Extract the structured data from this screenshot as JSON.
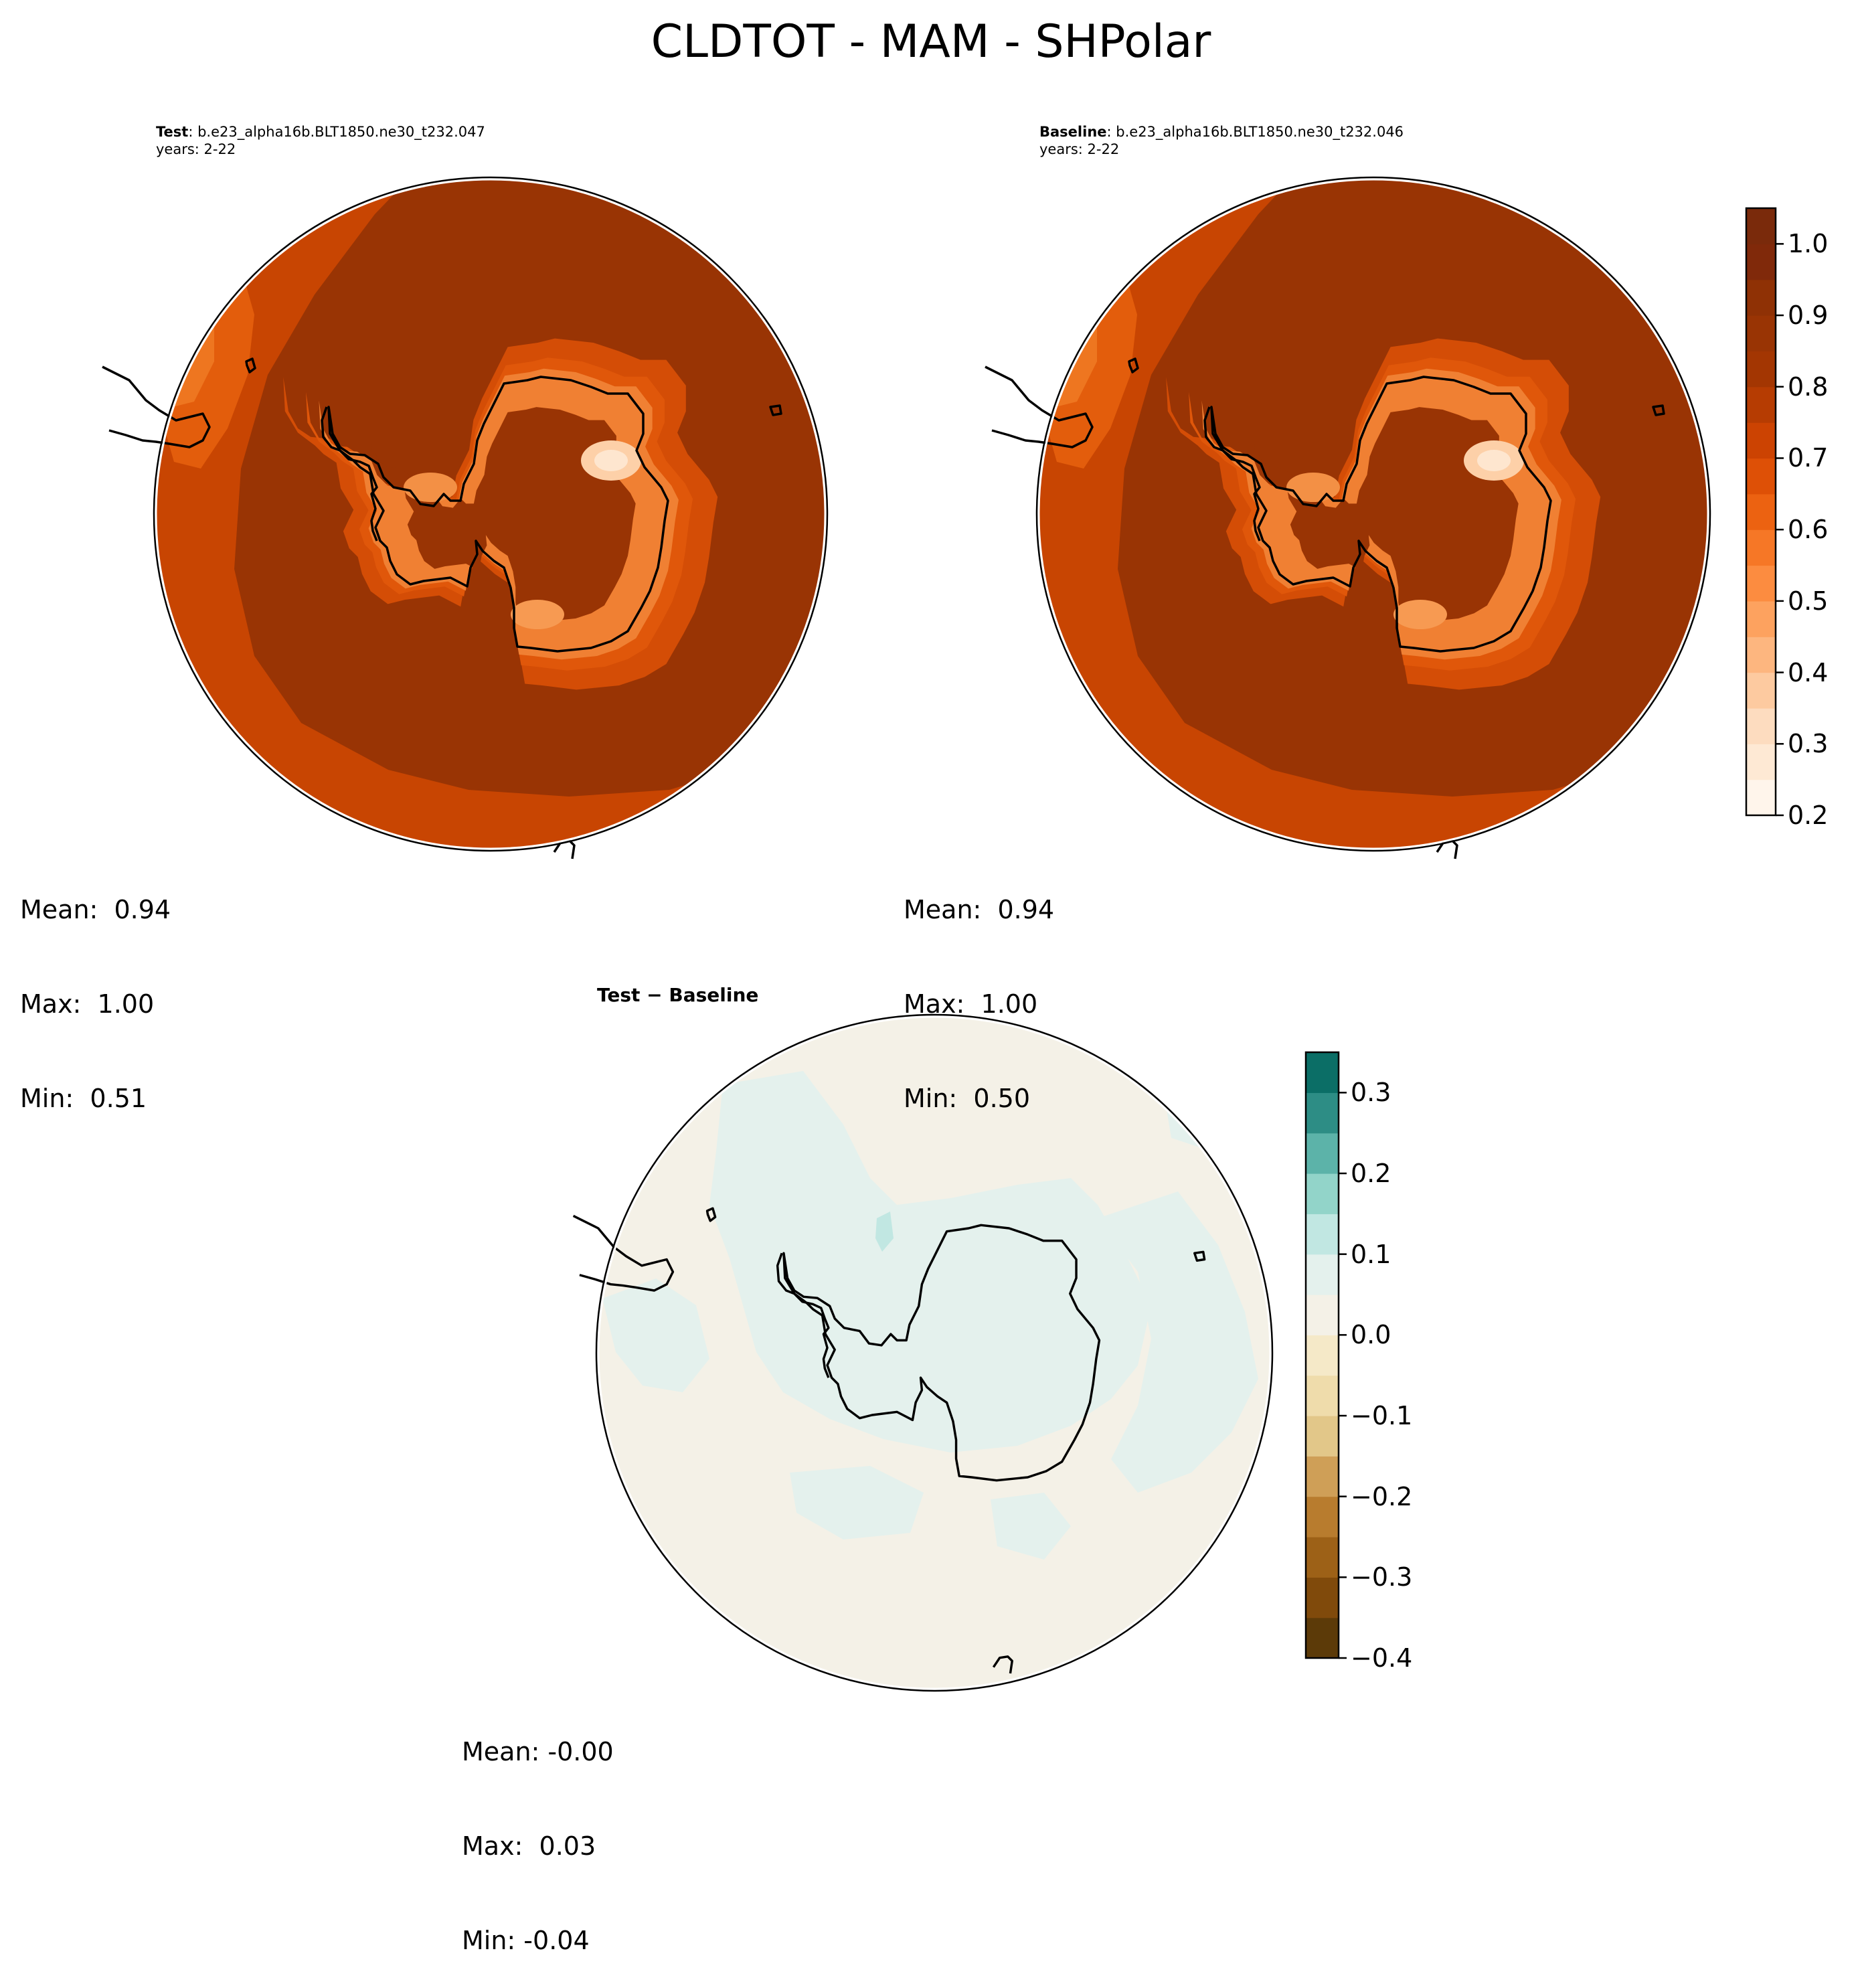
{
  "figure": {
    "title": "CLDTOT - MAM - SHPolar"
  },
  "panels": [
    {
      "id": "test",
      "title_bold": "Test",
      "title_rest": ": b.e23_alpha16b.BLT1850.ne30_t232.047",
      "subtitle": "years: 2-22",
      "stats": {
        "mean": "Mean:  0.94",
        "max": "Max:  1.00",
        "min": "Min:  0.51"
      }
    },
    {
      "id": "baseline",
      "title_bold": "Baseline",
      "title_rest": ": b.e23_alpha16b.BLT1850.ne30_t232.046",
      "subtitle": "years: 2-22",
      "stats": {
        "mean": "Mean:  0.94",
        "max": "Max:  1.00",
        "min": "Min:  0.50"
      }
    },
    {
      "id": "difference",
      "title_bold": "Test − Baseline",
      "stats": {
        "mean": "Mean: -0.00",
        "max": "Max:  0.03",
        "min": "Min: -0.04"
      }
    }
  ],
  "chart_data": [
    {
      "type": "heatmap",
      "projection": "south-polar-stereographic",
      "panel": "test",
      "colormap": "Oranges",
      "value_range": [
        0.2,
        1.05
      ],
      "mean": 0.94,
      "max": 1.0,
      "min": 0.51
    },
    {
      "type": "heatmap",
      "projection": "south-polar-stereographic",
      "panel": "baseline",
      "colormap": "Oranges",
      "value_range": [
        0.2,
        1.05
      ],
      "mean": 0.94,
      "max": 1.0,
      "min": 0.5
    },
    {
      "type": "heatmap",
      "projection": "south-polar-stereographic",
      "panel": "difference",
      "colormap": "BrBG",
      "value_range": [
        -0.4,
        0.35
      ],
      "mean": -0.0,
      "max": 0.03,
      "min": -0.04
    }
  ],
  "colorbars": [
    {
      "id": "colorbar-abs",
      "range": [
        0.2,
        1.05
      ],
      "boundaries": [
        0.2,
        0.25,
        0.3,
        0.35,
        0.4,
        0.45,
        0.5,
        0.55,
        0.6,
        0.65,
        0.7,
        0.75,
        0.8,
        0.85,
        0.9,
        0.95,
        1.0,
        1.05
      ],
      "colors": [
        "#fff5eb",
        "#fee9d4",
        "#fddcbf",
        "#fdcaa0",
        "#fdb67f",
        "#fda25f",
        "#fc8c40",
        "#f67726",
        "#ec6211",
        "#de5006",
        "#cc4302",
        "#b63c02",
        "#a33602",
        "#993404",
        "#8f3105",
        "#80290a",
        "#7a2a0b"
      ],
      "ticks": [
        0.2,
        0.3,
        0.4,
        0.5,
        0.6,
        0.7,
        0.8,
        0.9,
        1.0
      ],
      "tick_labels": [
        "0.2",
        "0.3",
        "0.4",
        "0.5",
        "0.6",
        "0.7",
        "0.8",
        "0.9",
        "1.0"
      ]
    },
    {
      "id": "colorbar-diff",
      "range": [
        -0.4,
        0.35
      ],
      "boundaries": [
        -0.4,
        -0.35,
        -0.3,
        -0.25,
        -0.2,
        -0.15,
        -0.1,
        -0.05,
        0.0,
        0.05,
        0.1,
        0.15,
        0.2,
        0.25,
        0.3,
        0.35
      ],
      "colors": [
        "#5c3a08",
        "#804a0b",
        "#9d6117",
        "#b87c2e",
        "#cf9f57",
        "#e2c789",
        "#efdcab",
        "#f5e9c8",
        "#f4f1e7",
        "#e4f1ed",
        "#c1e7e2",
        "#92d4c9",
        "#5cb3a9",
        "#2d8d85",
        "#0b6e66",
        "#024c42"
      ],
      "ticks": [
        -0.4,
        -0.3,
        -0.2,
        -0.1,
        0.0,
        0.1,
        0.2,
        0.3
      ],
      "tick_labels": [
        "−0.4",
        "−0.3",
        "−0.2",
        "−0.1",
        "0.0",
        "0.1",
        "0.2",
        "0.3"
      ]
    }
  ]
}
